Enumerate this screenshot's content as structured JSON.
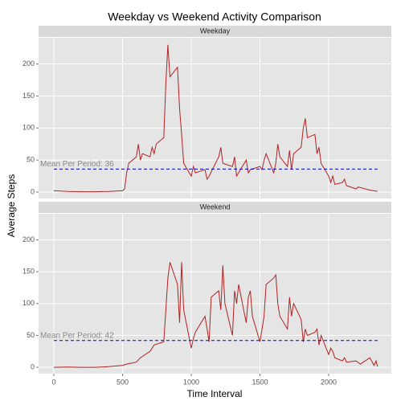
{
  "title": "Weekday vs Weekend Activity Comparison",
  "x_label": "Time Interval",
  "y_label": "Average Steps",
  "chart_data": [
    {
      "type": "line",
      "panel": "Weekday",
      "color": "#b22222",
      "x": [
        0,
        100,
        200,
        300,
        400,
        500,
        515,
        530,
        545,
        600,
        615,
        630,
        645,
        700,
        715,
        730,
        745,
        800,
        815,
        830,
        845,
        900,
        915,
        930,
        945,
        1000,
        1015,
        1030,
        1100,
        1115,
        1130,
        1200,
        1215,
        1230,
        1300,
        1315,
        1330,
        1400,
        1415,
        1430,
        1500,
        1515,
        1530,
        1545,
        1600,
        1615,
        1630,
        1645,
        1700,
        1715,
        1730,
        1745,
        1800,
        1815,
        1830,
        1845,
        1900,
        1915,
        1930,
        1945,
        2000,
        2015,
        2030,
        2045,
        2100,
        2115,
        2130,
        2200,
        2215,
        2300,
        2330,
        2355
      ],
      "values": [
        2,
        1,
        0.5,
        0.5,
        1,
        2,
        5,
        30,
        45,
        55,
        75,
        50,
        60,
        55,
        70,
        60,
        75,
        85,
        170,
        230,
        180,
        195,
        130,
        90,
        45,
        25,
        40,
        30,
        35,
        20,
        25,
        55,
        70,
        45,
        40,
        55,
        25,
        50,
        30,
        35,
        40,
        35,
        50,
        60,
        30,
        45,
        75,
        55,
        40,
        65,
        35,
        60,
        70,
        100,
        115,
        85,
        90,
        60,
        70,
        45,
        25,
        15,
        25,
        12,
        15,
        20,
        10,
        5,
        8,
        3,
        2,
        1
      ],
      "mean": 36,
      "mean_color": "#0000cc",
      "annotation": "Mean Per Period: 36",
      "xlim": [
        -111,
        2456
      ],
      "xticks": [
        0,
        500,
        1000,
        1500,
        2000
      ],
      "ylim": [
        -10,
        241
      ],
      "yticks": [
        0,
        50,
        100,
        150,
        200
      ],
      "grid": true
    },
    {
      "type": "line",
      "panel": "Weekend",
      "color": "#b22222",
      "x": [
        0,
        100,
        200,
        300,
        400,
        500,
        530,
        600,
        630,
        700,
        730,
        800,
        815,
        830,
        845,
        900,
        915,
        930,
        945,
        1000,
        1015,
        1030,
        1100,
        1115,
        1130,
        1145,
        1200,
        1215,
        1230,
        1245,
        1300,
        1315,
        1330,
        1345,
        1400,
        1415,
        1430,
        1445,
        1500,
        1515,
        1530,
        1545,
        1600,
        1615,
        1630,
        1645,
        1700,
        1715,
        1730,
        1745,
        1800,
        1815,
        1830,
        1845,
        1900,
        1915,
        1930,
        1945,
        2000,
        2015,
        2030,
        2045,
        2100,
        2115,
        2130,
        2200,
        2230,
        2300,
        2330,
        2345,
        2355
      ],
      "values": [
        0,
        0.5,
        0,
        0,
        1,
        3,
        5,
        8,
        15,
        25,
        35,
        40,
        90,
        140,
        165,
        130,
        70,
        165,
        90,
        30,
        45,
        55,
        80,
        60,
        40,
        110,
        120,
        90,
        160,
        100,
        50,
        120,
        100,
        130,
        70,
        110,
        120,
        80,
        40,
        60,
        80,
        130,
        140,
        145,
        100,
        80,
        60,
        110,
        80,
        100,
        75,
        40,
        60,
        50,
        55,
        60,
        35,
        50,
        20,
        30,
        25,
        15,
        10,
        15,
        8,
        10,
        5,
        15,
        3,
        10,
        1
      ],
      "mean": 42,
      "mean_color": "#0000cc",
      "annotation": "Mean Per Period: 42",
      "xlim": [
        -111,
        2456
      ],
      "xticks": [
        0,
        500,
        1000,
        1500,
        2000
      ],
      "ylim": [
        -10,
        241
      ],
      "yticks": [
        0,
        50,
        100,
        150,
        200
      ],
      "grid": true
    }
  ]
}
